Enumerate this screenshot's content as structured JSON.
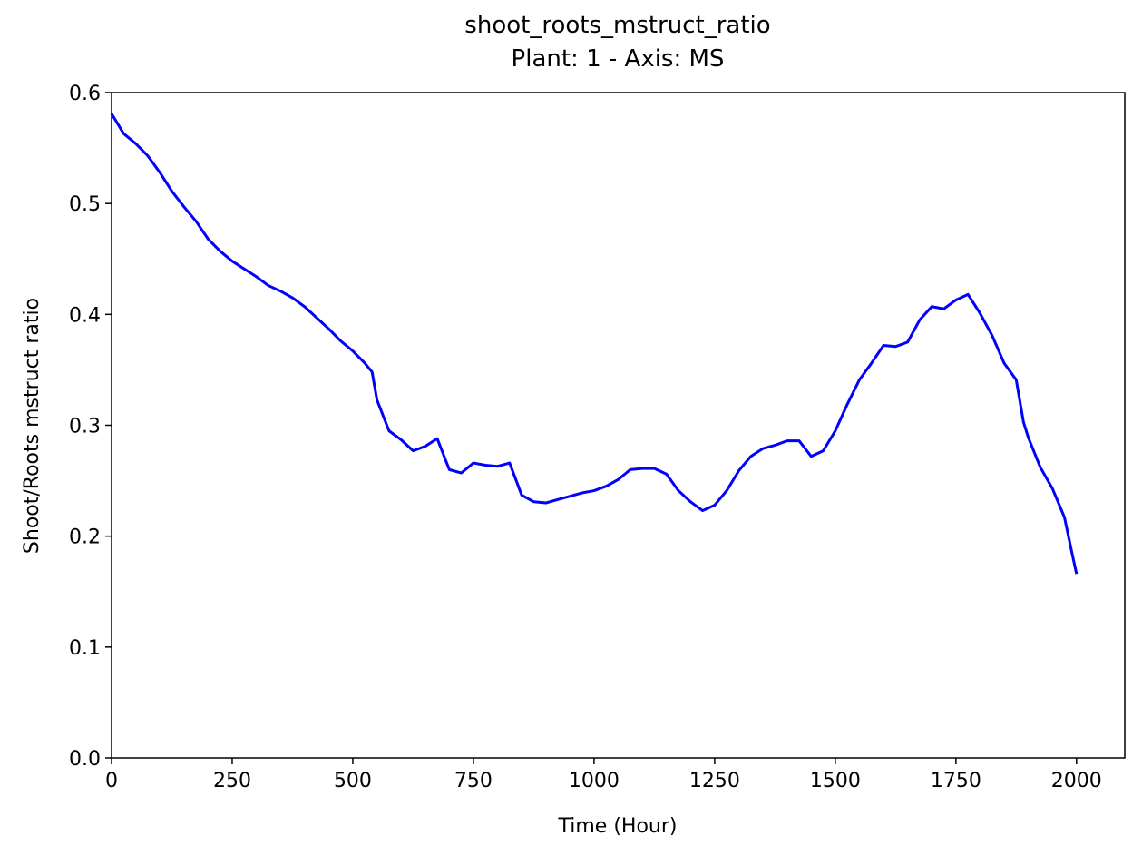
{
  "chart_data": {
    "type": "line",
    "title": "shoot_roots_mstruct_ratio",
    "subtitle": "Plant: 1 - Axis: MS",
    "x_label": "Time (Hour)",
    "y_label": "Shoot/Roots mstruct ratio",
    "xlim": [
      0,
      2100
    ],
    "ylim": [
      0,
      0.6
    ],
    "xticks": [
      0,
      250,
      500,
      750,
      1000,
      1250,
      1500,
      1750,
      2000
    ],
    "yticks": [
      {
        "value": 0,
        "label": "0.0"
      },
      0.1,
      0.2,
      0.3,
      0.4,
      0.5,
      {
        "value": 0.6,
        "label": "0.6"
      }
    ],
    "grid": false,
    "series": [
      {
        "name": "shoot_roots_mstruct_ratio",
        "color": "#0000ff",
        "x": [
          0,
          25,
          50,
          75,
          100,
          125,
          150,
          175,
          200,
          225,
          250,
          275,
          300,
          325,
          350,
          375,
          400,
          425,
          450,
          475,
          500,
          525,
          540,
          550,
          575,
          600,
          625,
          650,
          675,
          700,
          725,
          750,
          775,
          800,
          825,
          850,
          875,
          900,
          925,
          950,
          975,
          1000,
          1025,
          1050,
          1075,
          1100,
          1125,
          1150,
          1175,
          1200,
          1225,
          1250,
          1275,
          1300,
          1325,
          1350,
          1375,
          1400,
          1425,
          1450,
          1475,
          1500,
          1525,
          1550,
          1575,
          1600,
          1625,
          1650,
          1675,
          1700,
          1725,
          1750,
          1775,
          1800,
          1825,
          1850,
          1875,
          1890,
          1900,
          1925,
          1950,
          1975,
          1990,
          2000
        ],
        "values": [
          0.581,
          0.563,
          0.554,
          0.543,
          0.528,
          0.511,
          0.497,
          0.484,
          0.468,
          0.457,
          0.448,
          0.441,
          0.434,
          0.426,
          0.421,
          0.415,
          0.407,
          0.397,
          0.387,
          0.376,
          0.367,
          0.356,
          0.348,
          0.323,
          0.295,
          0.287,
          0.277,
          0.281,
          0.288,
          0.26,
          0.257,
          0.266,
          0.264,
          0.263,
          0.266,
          0.237,
          0.231,
          0.23,
          0.233,
          0.236,
          0.239,
          0.241,
          0.245,
          0.251,
          0.26,
          0.261,
          0.261,
          0.256,
          0.241,
          0.231,
          0.223,
          0.228,
          0.241,
          0.259,
          0.272,
          0.279,
          0.282,
          0.286,
          0.286,
          0.272,
          0.277,
          0.295,
          0.319,
          0.341,
          0.356,
          0.372,
          0.371,
          0.375,
          0.395,
          0.407,
          0.405,
          0.413,
          0.418,
          0.401,
          0.381,
          0.356,
          0.341,
          0.303,
          0.289,
          0.262,
          0.243,
          0.217,
          0.186,
          0.166
        ]
      }
    ]
  }
}
